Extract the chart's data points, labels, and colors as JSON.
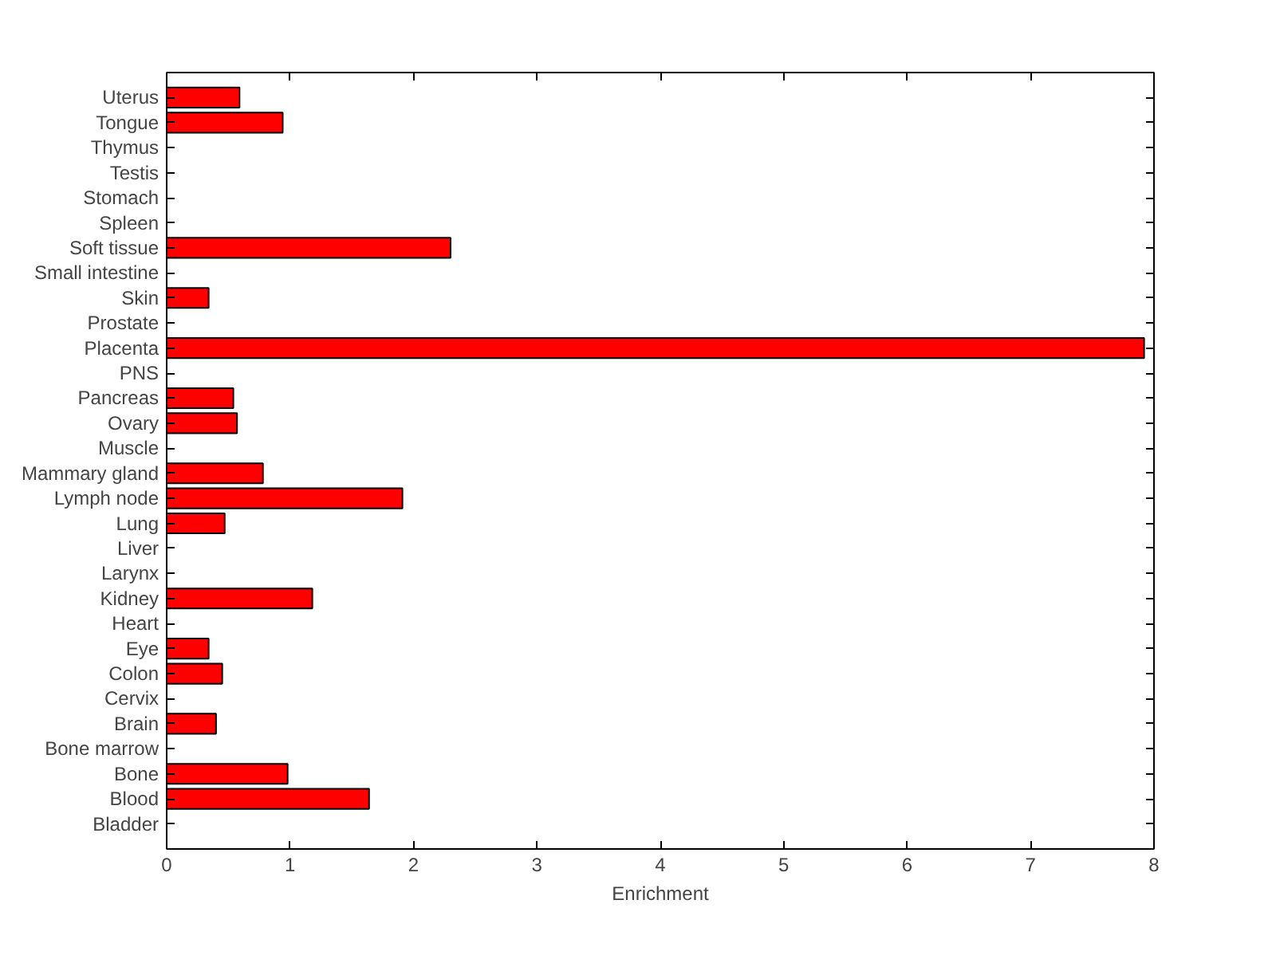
{
  "chart_data": {
    "type": "bar",
    "orientation": "horizontal",
    "xlabel": "Enrichment",
    "categories": [
      "Uterus",
      "Tongue",
      "Thymus",
      "Testis",
      "Stomach",
      "Spleen",
      "Soft tissue",
      "Small intestine",
      "Skin",
      "Prostate",
      "Placenta",
      "PNS",
      "Pancreas",
      "Ovary",
      "Muscle",
      "Mammary gland",
      "Lymph node",
      "Lung",
      "Liver",
      "Larynx",
      "Kidney",
      "Heart",
      "Eye",
      "Colon",
      "Cervix",
      "Brain",
      "Bone marrow",
      "Bone",
      "Blood",
      "Bladder"
    ],
    "values": [
      0.59,
      0.94,
      null,
      null,
      null,
      null,
      2.3,
      null,
      0.34,
      null,
      7.92,
      null,
      0.54,
      0.57,
      null,
      0.78,
      1.91,
      0.47,
      null,
      null,
      1.18,
      null,
      0.34,
      0.45,
      null,
      0.4,
      null,
      0.98,
      1.64,
      null
    ],
    "color": "#ff0000",
    "xlim": [
      0,
      8
    ],
    "xticks": [
      0,
      1,
      2,
      3,
      4,
      5,
      6,
      7,
      8
    ],
    "grid": false
  }
}
